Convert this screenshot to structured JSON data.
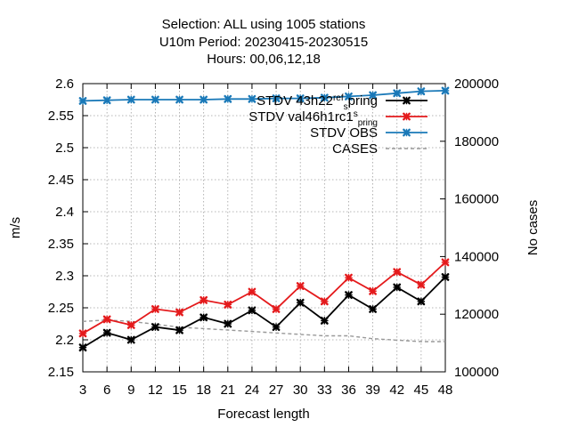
{
  "chart_data": {
    "type": "line",
    "title": [
      "Selection: ALL using  1005 stations",
      "U10m   Period: 20230415-20230515",
      "Hours:  00,06,12,18"
    ],
    "xlabel": "Forecast length",
    "ylabel": "m/s",
    "y2label": "No cases",
    "x": [
      3,
      6,
      9,
      12,
      15,
      18,
      21,
      24,
      27,
      30,
      33,
      36,
      39,
      42,
      45,
      48
    ],
    "xlim": [
      3,
      48
    ],
    "ylim": [
      2.15,
      2.6
    ],
    "y2lim": [
      100000,
      200000
    ],
    "yticks": [
      "2.15",
      "2.2",
      "2.25",
      "2.3",
      "2.35",
      "2.4",
      "2.45",
      "2.5",
      "2.55",
      "2.6"
    ],
    "y2ticks": [
      "100000",
      "120000",
      "140000",
      "160000",
      "180000",
      "200000"
    ],
    "grid": true,
    "legend_position": "top-right",
    "series": [
      {
        "name": "STDV 43h22_refspring",
        "name_parts": [
          "STDV 43h22",
          "ref",
          "s",
          "pring"
        ],
        "color": "#000000",
        "axis": "y1",
        "values": [
          2.188,
          2.211,
          2.2,
          2.22,
          2.215,
          2.235,
          2.225,
          2.246,
          2.22,
          2.258,
          2.23,
          2.27,
          2.248,
          2.282,
          2.26,
          2.298
        ]
      },
      {
        "name": "STDV val46h1rc1_spring",
        "name_parts": [
          "STDV val46h1rc1",
          "s",
          "pring"
        ],
        "color": "#e41a1c",
        "axis": "y1",
        "values": [
          2.21,
          2.232,
          2.223,
          2.248,
          2.243,
          2.262,
          2.255,
          2.275,
          2.248,
          2.284,
          2.26,
          2.297,
          2.276,
          2.306,
          2.286,
          2.321
        ]
      },
      {
        "name": "STDV OBS",
        "name_parts": [
          "STDV OBS"
        ],
        "color": "#1a79b8",
        "axis": "y1",
        "values": [
          2.573,
          2.574,
          2.575,
          2.575,
          2.575,
          2.575,
          2.576,
          2.576,
          2.577,
          2.577,
          2.578,
          2.58,
          2.582,
          2.585,
          2.588,
          2.589
        ]
      },
      {
        "name": "CASES",
        "name_parts": [
          "CASES"
        ],
        "color": "#999999",
        "axis": "y2",
        "dashed": true,
        "values": [
          117500,
          118000,
          117500,
          116500,
          115500,
          115000,
          114500,
          114000,
          113500,
          113000,
          112500,
          112500,
          111500,
          111000,
          110500,
          110500
        ]
      }
    ]
  }
}
